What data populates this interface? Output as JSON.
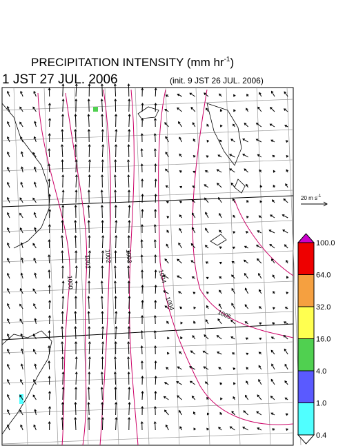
{
  "header": {
    "title": "PRECIPITATION INTENSITY (mm hr",
    "title_sup": "-1",
    "title_end": ")",
    "valid_time": "1 JST 27 JUL. 2006",
    "init_time": "(init. 9 JST 26 JUL. 2006)"
  },
  "scale": {
    "label": "20 m s",
    "sup": "-1"
  },
  "colorbar": {
    "labels": [
      "100.0",
      "64.0",
      "32.0",
      "16.0",
      "4.0",
      "1.0",
      "0.4"
    ],
    "colors": [
      "#cc00cc",
      "#ee0000",
      "#f5a040",
      "#ffff50",
      "#50d050",
      "#5a5aff",
      "#50ffff",
      "#ffffff"
    ]
  },
  "isobar_labels": [
    "1000",
    "1001",
    "1002",
    "1003",
    "1004",
    "1004",
    "1005"
  ]
}
